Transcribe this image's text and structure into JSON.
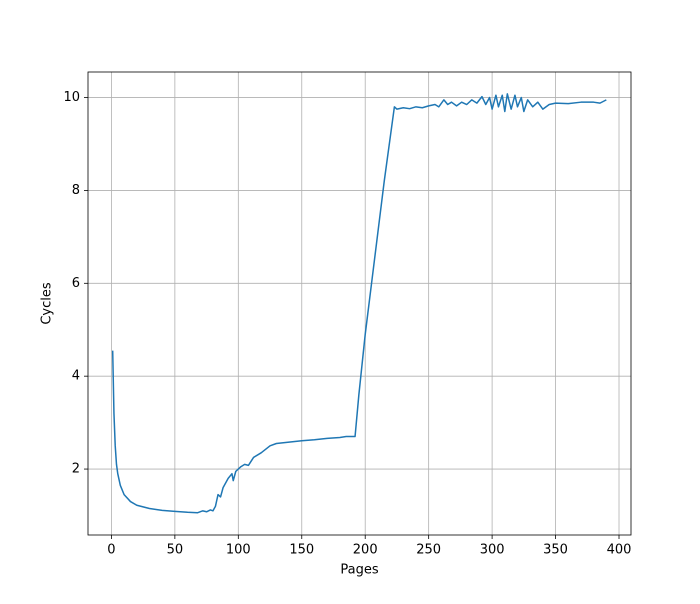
{
  "chart_data": {
    "type": "line",
    "xlabel": "Pages",
    "ylabel": "Cycles",
    "x": [
      1,
      2,
      3,
      4,
      5,
      7,
      10,
      15,
      20,
      30,
      40,
      50,
      60,
      68,
      72,
      75,
      78,
      80,
      82,
      84,
      86,
      88,
      92,
      95,
      96,
      98,
      102,
      105,
      108,
      112,
      118,
      125,
      130,
      140,
      150,
      160,
      170,
      180,
      185,
      192,
      195,
      200,
      205,
      210,
      215,
      220,
      223,
      225,
      230,
      235,
      240,
      245,
      250,
      255,
      258,
      262,
      265,
      268,
      272,
      276,
      280,
      284,
      288,
      292,
      295,
      298,
      300,
      303,
      305,
      308,
      310,
      312,
      315,
      318,
      320,
      323,
      325,
      328,
      332,
      336,
      340,
      345,
      350,
      360,
      370,
      380,
      385,
      390
    ],
    "values": [
      4.55,
      3.2,
      2.5,
      2.1,
      1.9,
      1.65,
      1.45,
      1.3,
      1.22,
      1.15,
      1.11,
      1.09,
      1.07,
      1.06,
      1.1,
      1.08,
      1.12,
      1.1,
      1.2,
      1.45,
      1.4,
      1.6,
      1.8,
      1.9,
      1.75,
      1.95,
      2.05,
      2.1,
      2.08,
      2.25,
      2.35,
      2.5,
      2.55,
      2.58,
      2.61,
      2.63,
      2.66,
      2.68,
      2.7,
      2.7,
      3.6,
      4.9,
      6.0,
      7.1,
      8.2,
      9.2,
      9.8,
      9.75,
      9.78,
      9.76,
      9.8,
      9.78,
      9.82,
      9.85,
      9.8,
      9.95,
      9.85,
      9.9,
      9.82,
      9.9,
      9.85,
      9.95,
      9.88,
      10.02,
      9.85,
      10.0,
      9.75,
      10.05,
      9.8,
      10.05,
      9.7,
      10.08,
      9.75,
      10.05,
      9.8,
      10.0,
      9.7,
      9.95,
      9.8,
      9.9,
      9.75,
      9.85,
      9.88,
      9.87,
      9.9,
      9.9,
      9.88,
      9.95
    ],
    "color": "#1f77b4",
    "xlim": [
      -18.45,
      409.45
    ],
    "ylim": [
      0.58,
      10.55
    ],
    "xticks": [
      0,
      50,
      100,
      150,
      200,
      250,
      300,
      350,
      400
    ],
    "yticks": [
      2,
      4,
      6,
      8,
      10
    ],
    "grid": true
  }
}
